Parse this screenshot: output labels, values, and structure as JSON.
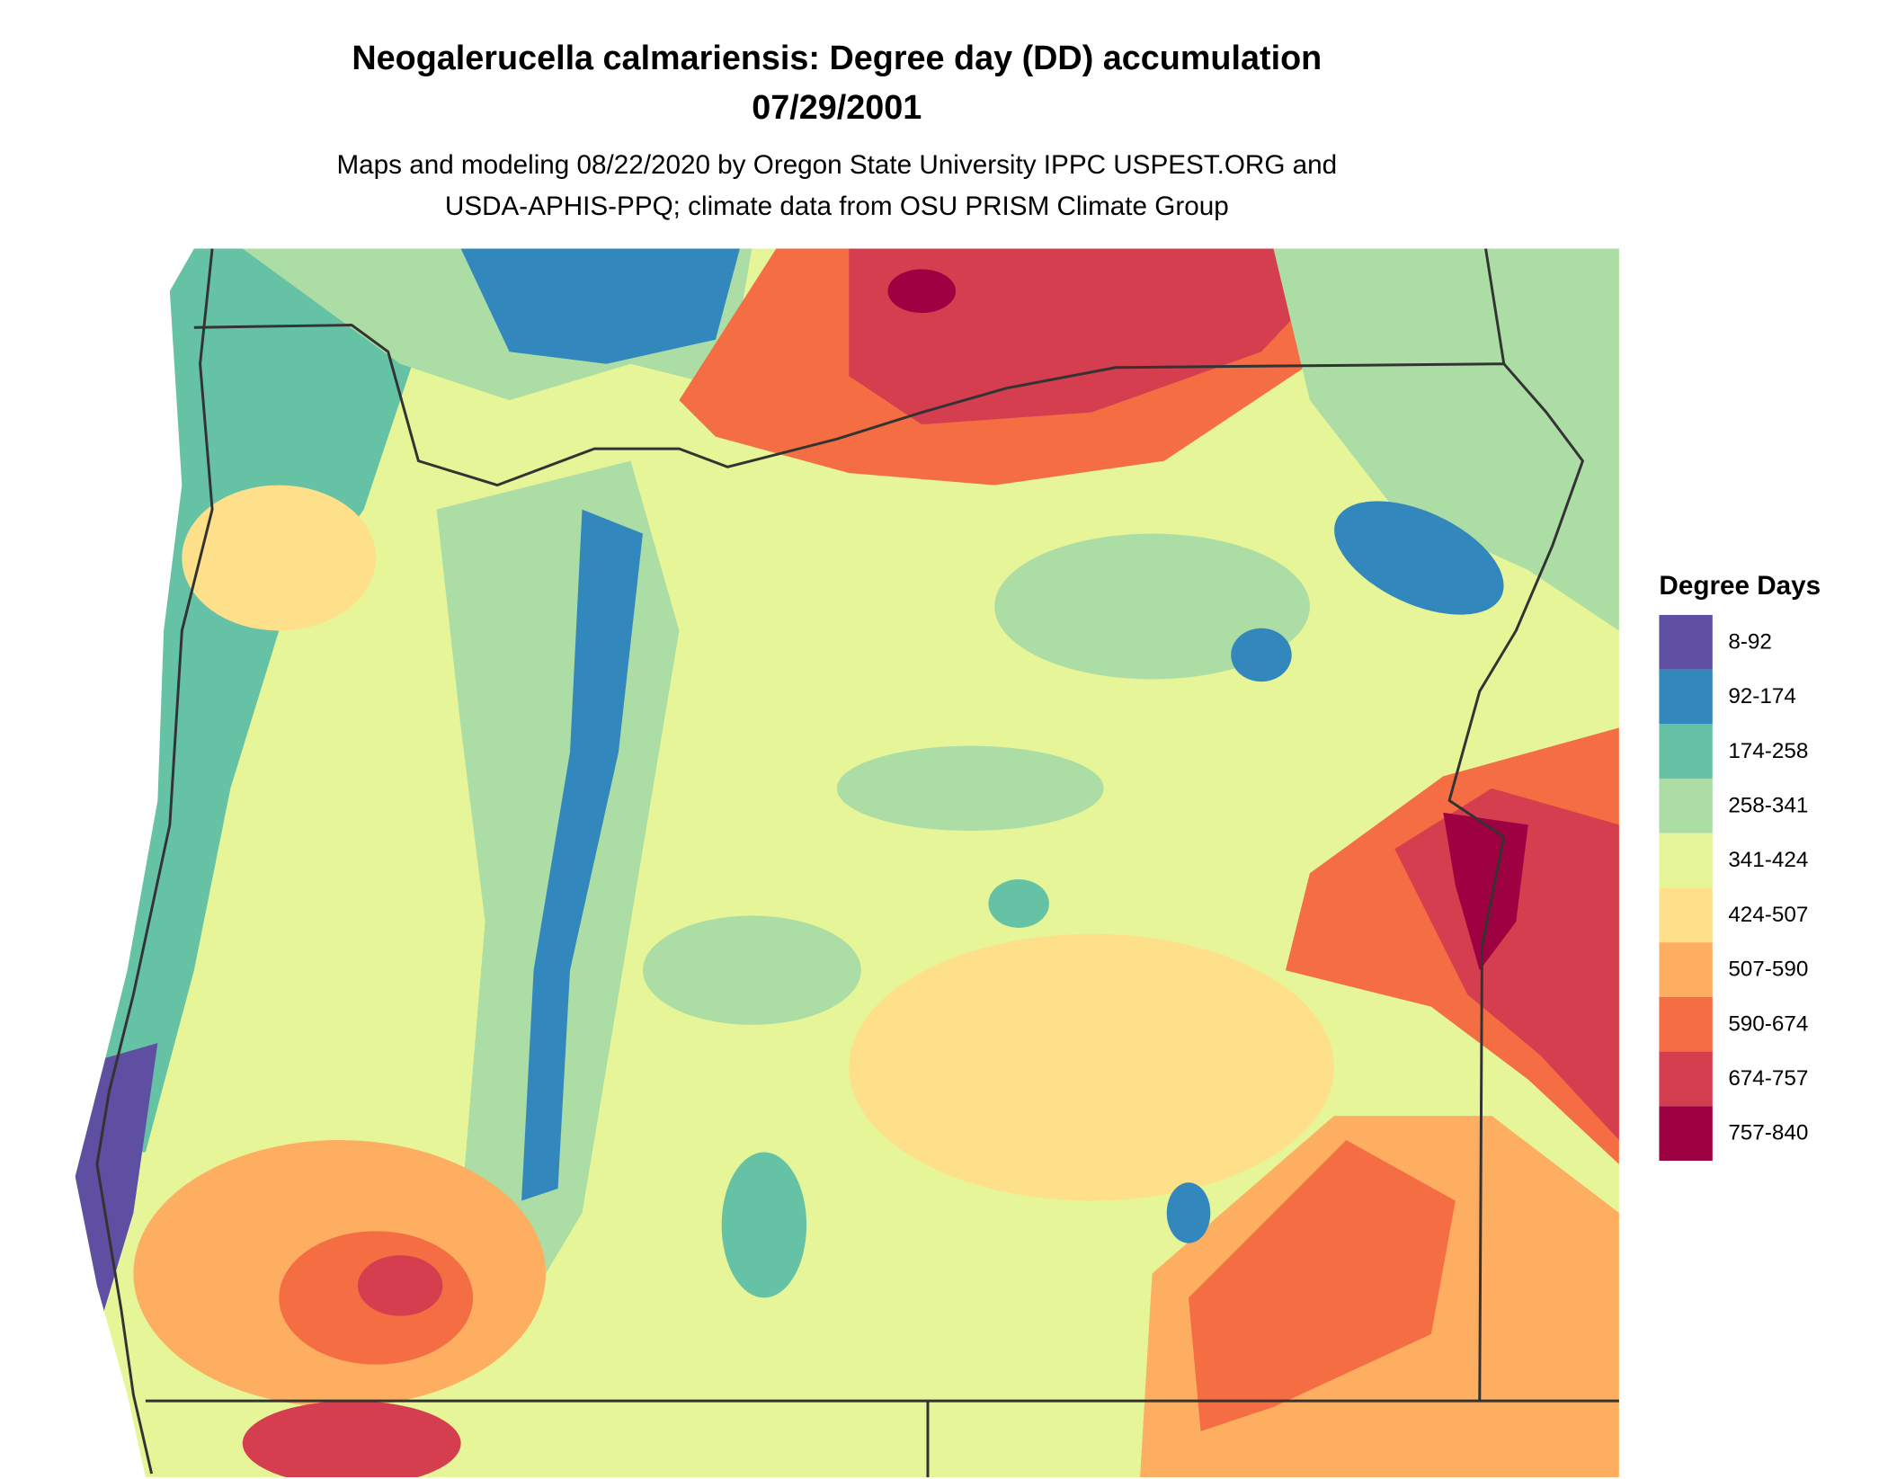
{
  "title": "Neogalerucella calmariensis: Degree day (DD) accumulation",
  "date": "07/29/2001",
  "subtitle": [
    "Maps and modeling 08/22/2020 by Oregon State University IPPC USPEST.ORG and",
    "USDA-APHIS-PPQ; climate data from OSU PRISM Climate Group"
  ],
  "legend": {
    "title": "Degree Days",
    "items": [
      {
        "label": "8-92",
        "color": "#5E4FA2"
      },
      {
        "label": "92-174",
        "color": "#3288BD"
      },
      {
        "label": "174-258",
        "color": "#66C2A5"
      },
      {
        "label": "258-341",
        "color": "#ABDDA4"
      },
      {
        "label": "341-424",
        "color": "#E6F598"
      },
      {
        "label": "424-507",
        "color": "#FEE08B"
      },
      {
        "label": "507-590",
        "color": "#FDAE61"
      },
      {
        "label": "590-674",
        "color": "#F46D43"
      },
      {
        "label": "674-757",
        "color": "#D53E4F"
      },
      {
        "label": "757-840",
        "color": "#9E0142"
      }
    ]
  }
}
